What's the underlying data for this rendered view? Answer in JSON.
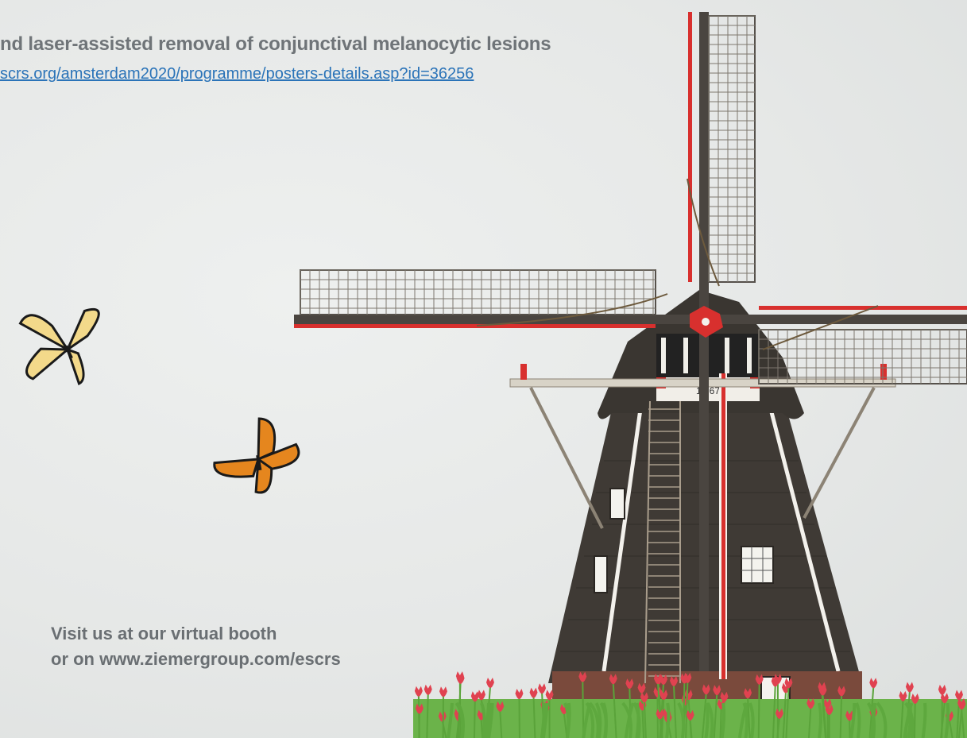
{
  "poster": {
    "title": "nd laser-assisted removal of conjunctival melanocytic lesions",
    "link": "scrs.org/amsterdam2020/programme/posters-details.asp?id=36256"
  },
  "booth": {
    "line1": "Visit us at our virtual booth",
    "line2": "or on www.ziemergroup.com/escrs"
  },
  "windmill": {
    "date_text": "19 67"
  },
  "colors": {
    "title": "#6f7478",
    "link": "#2a73b8",
    "booth": "#6a6f73",
    "mill_body": "#3d3935",
    "mill_trim": "#d8302e",
    "tulip": "#e04250",
    "stem": "#5aa33a"
  }
}
